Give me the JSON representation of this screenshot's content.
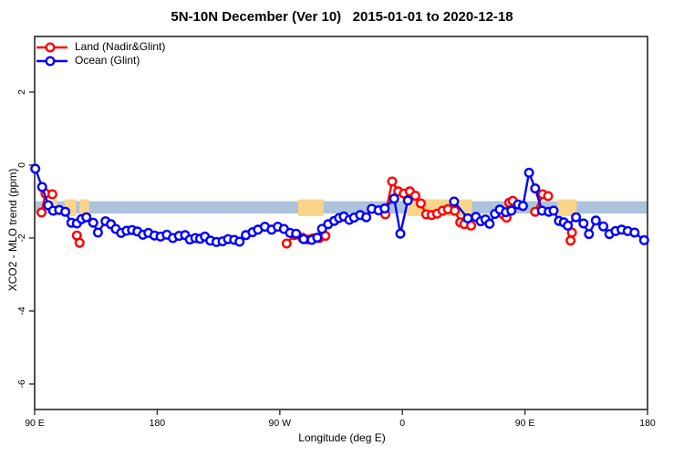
{
  "title": "5N-10N December (Ver 10)   2015-01-01 to 2020-12-18",
  "legend": {
    "items": [
      {
        "label": "Land (Nadir&Glint)",
        "color": "#ff0000"
      },
      {
        "label": "Ocean (Glint)",
        "color": "#0000ff"
      }
    ]
  },
  "axes": {
    "x": {
      "label": "Longitude (deg E)",
      "range": [
        90,
        540
      ],
      "ticks": [
        {
          "value": 90,
          "label": "90 E"
        },
        {
          "value": 180,
          "label": "180"
        },
        {
          "value": 270,
          "label": "90 W"
        },
        {
          "value": 360,
          "label": "0"
        },
        {
          "value": 450,
          "label": "90 E"
        },
        {
          "value": 540,
          "label": "180"
        }
      ]
    },
    "y": {
      "label": "XCO2 - MLO trend (ppm)",
      "range": [
        -6.7,
        3.5
      ],
      "ticks": [
        {
          "value": 2,
          "label": "2"
        },
        {
          "value": 0,
          "label": "0"
        },
        {
          "value": -2,
          "label": "-2"
        },
        {
          "value": -4,
          "label": "-4"
        },
        {
          "value": -6,
          "label": "-6"
        }
      ]
    }
  },
  "colors": {
    "land_series": "#ff0000",
    "ocean_series": "#0000ff",
    "ocean_band": "#adc3dc",
    "land_patch": "#fbd589",
    "frame": "#3f3f3f",
    "text": "#000000"
  },
  "chart_data": {
    "type": "line",
    "title": "5N-10N December (Ver 10)   2015-01-01 to 2020-12-18",
    "xlabel": "Longitude (deg E)",
    "ylabel": "XCO2 - MLO trend (ppm)",
    "xlim": [
      90,
      540
    ],
    "ylim": [
      -6.7,
      3.5
    ],
    "grid": false,
    "legend_position": "top-left",
    "band": {
      "y0": -1.33,
      "y1": -0.99,
      "color": "#adc3dc"
    },
    "land_patches": {
      "color": "#fbd589",
      "y0": -1.4,
      "y1": -0.94,
      "ranges": [
        [
          103.5,
          106.5
        ],
        [
          112,
          120.5
        ],
        [
          123,
          130
        ],
        [
          283.5,
          302
        ],
        [
          363.5,
          411
        ],
        [
          474,
          488
        ]
      ]
    },
    "series": [
      {
        "name": "Land (Nadir&Glint)",
        "color": "#ff0000",
        "marker": "open-circle",
        "segments": [
          [
            [
              95,
              -1.3
            ],
            [
              98,
              -0.78
            ],
            [
              103,
              -0.8
            ]
          ],
          [
            [
              121,
              -1.93
            ],
            [
              123,
              -2.13
            ]
          ],
          [
            [
              275,
              -2.15
            ],
            [
              280.5,
              -1.92
            ],
            [
              286.5,
              -1.99
            ],
            [
              290.5,
              -2.04
            ],
            [
              294.5,
              -2.01
            ],
            [
              299,
              -2.0
            ],
            [
              303.5,
              -1.94
            ]
          ],
          [
            [
              347.5,
              -1.35
            ],
            [
              352.5,
              -0.45
            ],
            [
              357,
              -0.72
            ],
            [
              361,
              -0.78
            ],
            [
              365.5,
              -0.72
            ],
            [
              369.5,
              -0.84
            ],
            [
              373.5,
              -1.05
            ],
            [
              377.5,
              -1.35
            ],
            [
              381.5,
              -1.37
            ],
            [
              385.5,
              -1.33
            ],
            [
              389.5,
              -1.25
            ],
            [
              393.5,
              -1.21
            ],
            [
              398.5,
              -1.25
            ],
            [
              402.5,
              -1.57
            ],
            [
              405.5,
              -1.62
            ],
            [
              410.5,
              -1.66
            ]
          ],
          [
            [
              434,
              -1.35
            ],
            [
              436.5,
              -1.44
            ],
            [
              438.5,
              -1.03
            ],
            [
              441,
              -0.98
            ]
          ],
          [
            [
              457.5,
              -1.28
            ],
            [
              463,
              -0.8
            ],
            [
              467,
              -0.85
            ]
          ],
          [
            [
              483.5,
              -2.07
            ],
            [
              484.5,
              -1.85
            ]
          ]
        ]
      },
      {
        "name": "Ocean (Glint)",
        "color": "#0000ff",
        "marker": "open-circle",
        "segments": [
          [
            [
              90.5,
              -0.1
            ],
            [
              95.5,
              -0.6
            ],
            [
              100,
              -1.1
            ],
            [
              103.5,
              -1.25
            ],
            [
              108,
              -1.23
            ],
            [
              112.5,
              -1.28
            ],
            [
              117,
              -1.58
            ],
            [
              121,
              -1.6
            ],
            [
              124.5,
              -1.48
            ],
            [
              128,
              -1.43
            ],
            [
              133,
              -1.58
            ],
            [
              136.5,
              -1.85
            ],
            [
              142,
              -1.54
            ],
            [
              146,
              -1.62
            ],
            [
              149.5,
              -1.75
            ],
            [
              153.5,
              -1.86
            ],
            [
              157.5,
              -1.8
            ],
            [
              161.5,
              -1.78
            ],
            [
              165.5,
              -1.82
            ],
            [
              169.5,
              -1.91
            ],
            [
              173.5,
              -1.86
            ],
            [
              178,
              -1.93
            ],
            [
              182.5,
              -1.96
            ],
            [
              187,
              -1.91
            ],
            [
              191.5,
              -2.0
            ],
            [
              196,
              -1.94
            ],
            [
              200.5,
              -1.92
            ],
            [
              204,
              -2.04
            ],
            [
              208,
              -2.0
            ],
            [
              211.5,
              -2.02
            ],
            [
              215,
              -1.96
            ],
            [
              219,
              -2.07
            ],
            [
              223.5,
              -2.11
            ],
            [
              228,
              -2.09
            ],
            [
              232,
              -2.03
            ],
            [
              236.5,
              -2.05
            ],
            [
              240.5,
              -2.1
            ],
            [
              245,
              -1.92
            ],
            [
              250,
              -1.84
            ],
            [
              254,
              -1.77
            ],
            [
              259,
              -1.69
            ],
            [
              264,
              -1.77
            ],
            [
              268.5,
              -1.69
            ],
            [
              273,
              -1.75
            ],
            [
              277.5,
              -1.86
            ],
            [
              282,
              -1.88
            ],
            [
              287.5,
              -2.03
            ],
            [
              293.5,
              -2.05
            ],
            [
              297.5,
              -1.99
            ],
            [
              301,
              -1.75
            ],
            [
              305.5,
              -1.62
            ],
            [
              310,
              -1.53
            ],
            [
              313.5,
              -1.45
            ],
            [
              317,
              -1.41
            ],
            [
              321,
              -1.5
            ],
            [
              324.5,
              -1.44
            ],
            [
              329,
              -1.37
            ],
            [
              333.5,
              -1.43
            ],
            [
              337.5,
              -1.2
            ],
            [
              342.5,
              -1.24
            ],
            [
              347,
              -1.19
            ],
            [
              354,
              -0.92
            ],
            [
              358.5,
              -1.88
            ],
            [
              364,
              -0.97
            ]
          ],
          [
            [
              398,
              -1.0
            ],
            [
              408,
              -1.46
            ],
            [
              414,
              -1.42
            ],
            [
              417.5,
              -1.54
            ],
            [
              421,
              -1.49
            ],
            [
              424,
              -1.61
            ],
            [
              428,
              -1.34
            ],
            [
              431.5,
              -1.22
            ],
            [
              436,
              -1.29
            ],
            [
              440,
              -1.25
            ],
            [
              445,
              -1.08
            ],
            [
              448.5,
              -1.12
            ],
            [
              453,
              -0.21
            ],
            [
              457.5,
              -0.64
            ],
            [
              462.5,
              -1.25
            ],
            [
              467.5,
              -1.28
            ],
            [
              471,
              -1.25
            ],
            [
              475,
              -1.53
            ],
            [
              478.5,
              -1.57
            ],
            [
              481.5,
              -1.66
            ],
            [
              487.5,
              -1.43
            ],
            [
              493,
              -1.6
            ],
            [
              497,
              -1.89
            ],
            [
              502,
              -1.52
            ],
            [
              507.5,
              -1.68
            ],
            [
              512,
              -1.89
            ],
            [
              516.5,
              -1.81
            ],
            [
              521,
              -1.77
            ],
            [
              525.5,
              -1.81
            ],
            [
              530.5,
              -1.85
            ],
            [
              537.5,
              -2.06
            ]
          ]
        ]
      }
    ]
  }
}
